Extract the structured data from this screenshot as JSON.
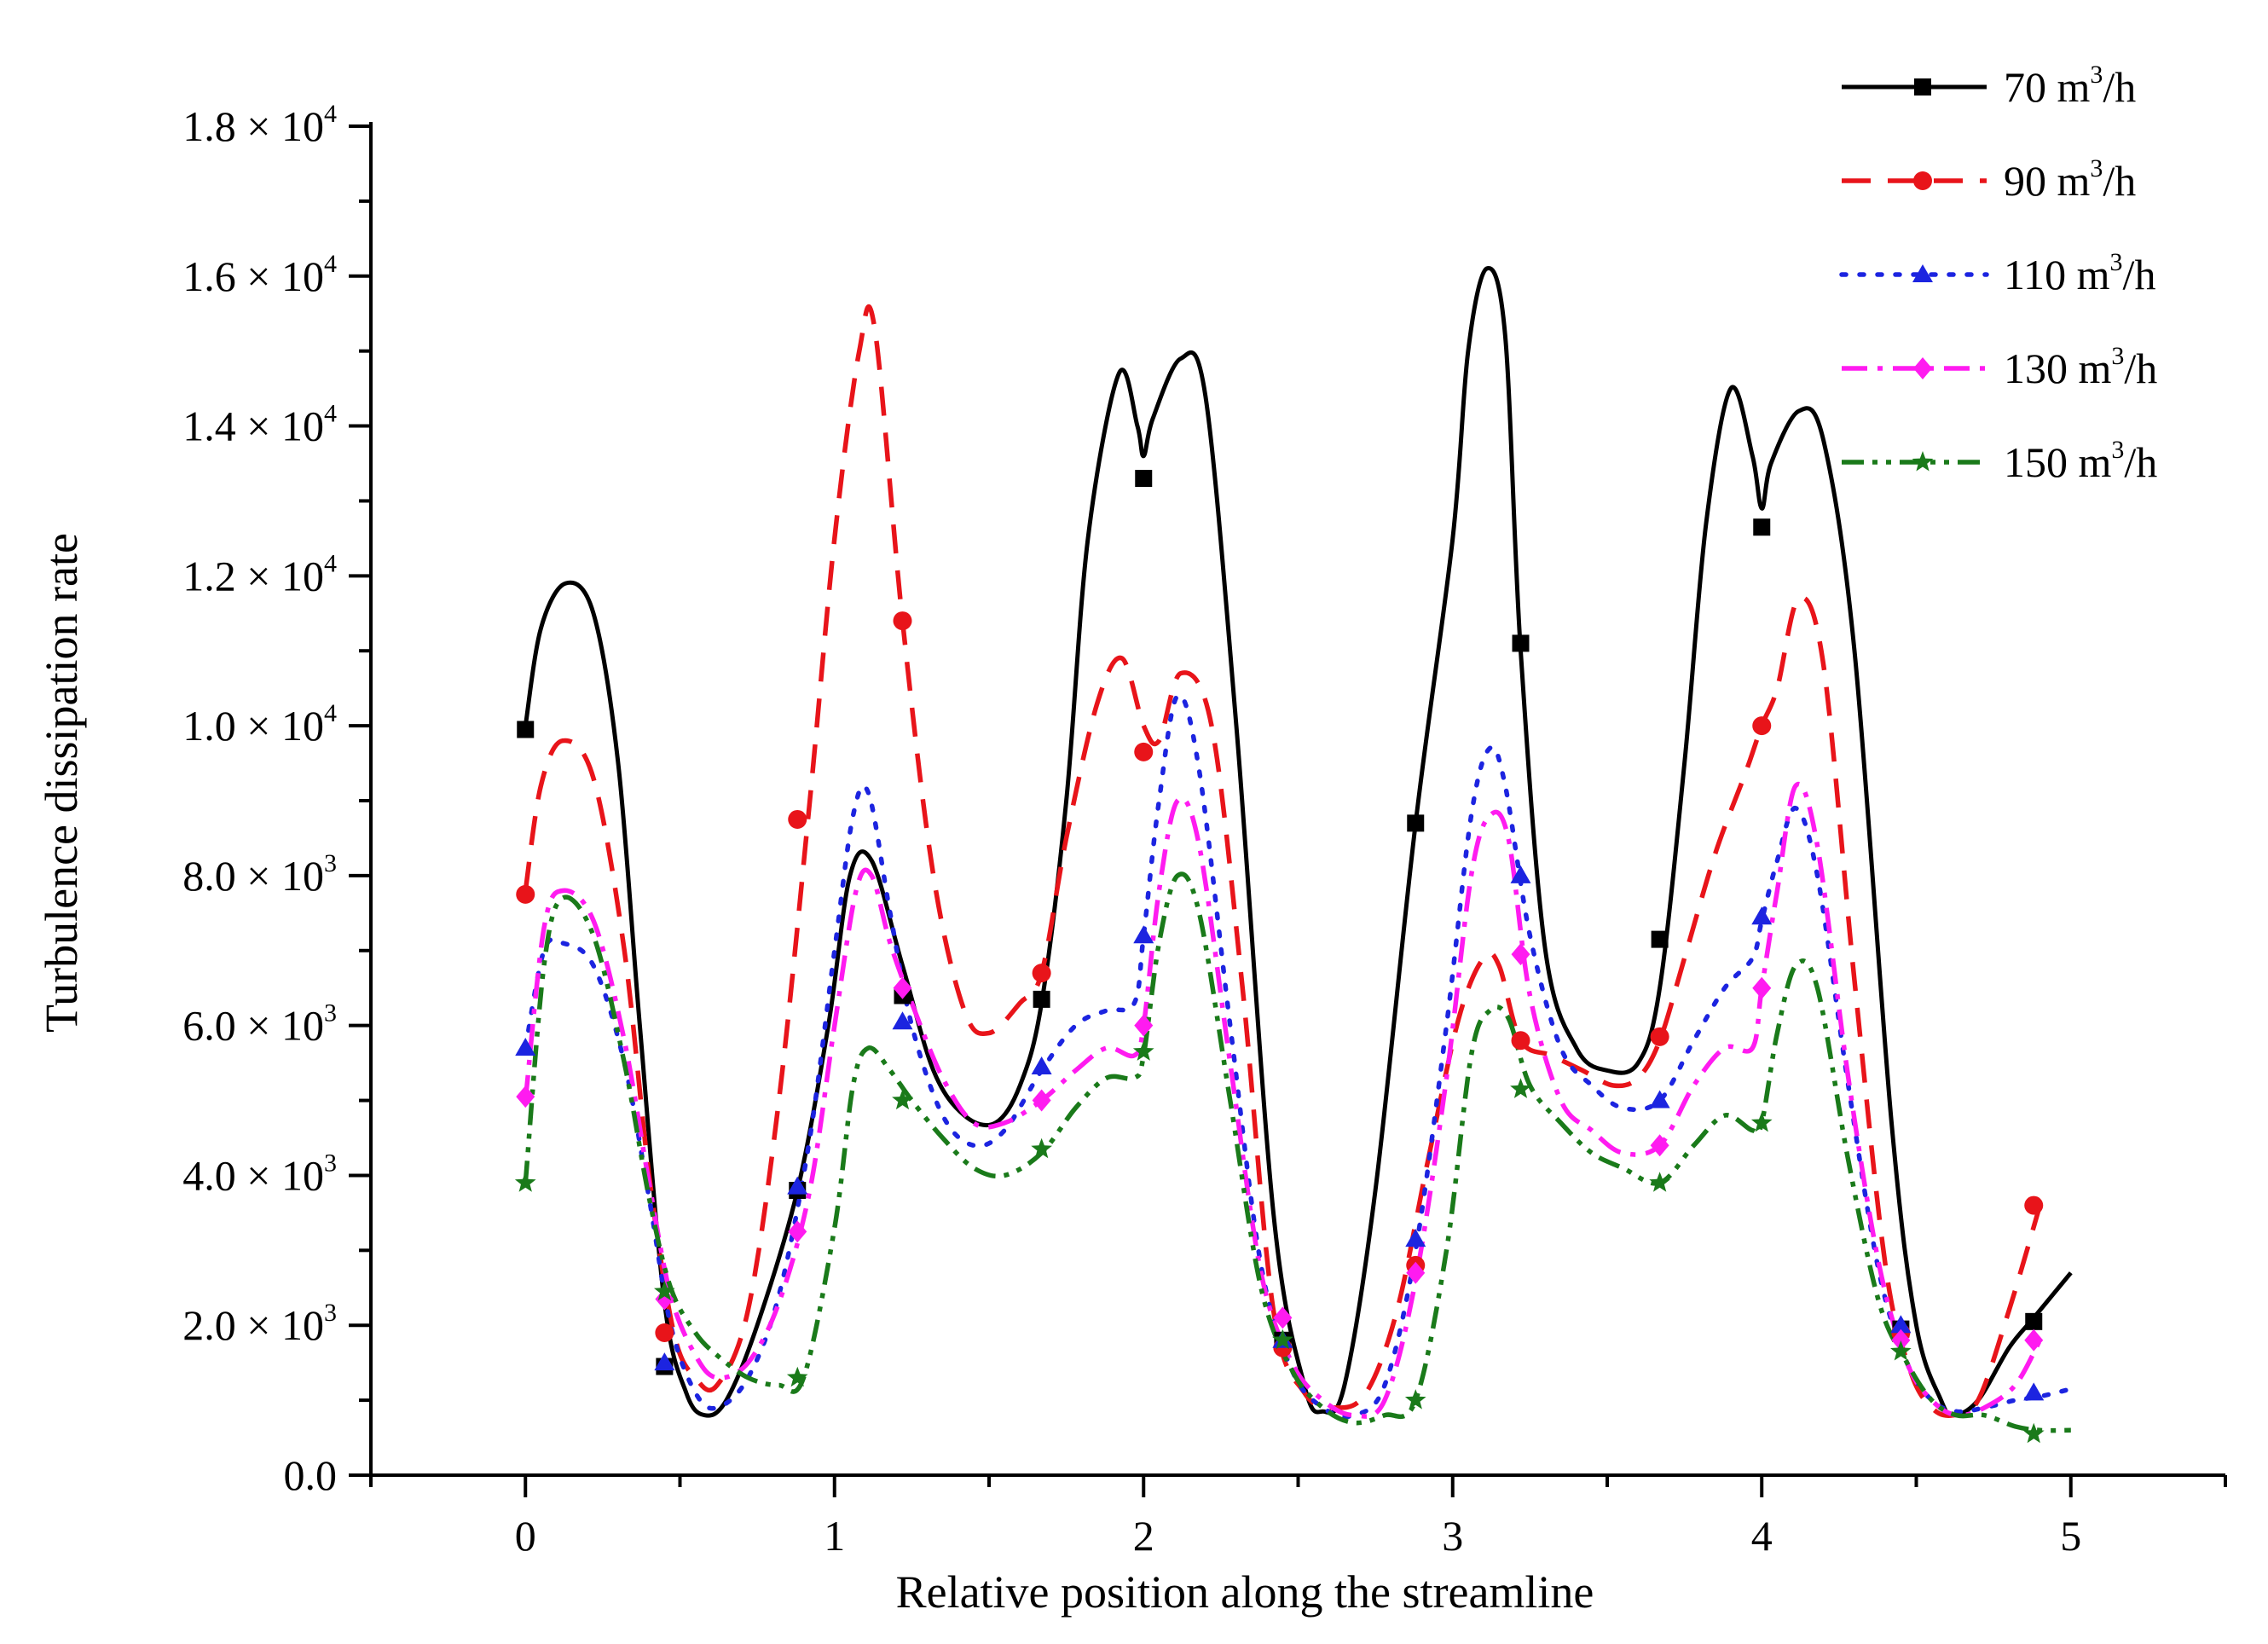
{
  "chart_data": {
    "type": "line",
    "title": "",
    "xlabel": "Relative position along the streamline",
    "ylabel": "Turbulence dissipation rate",
    "xlim": [
      -0.5,
      5.5
    ],
    "ylim": [
      0,
      18000
    ],
    "x_ticks": [
      0,
      1,
      2,
      3,
      4,
      5
    ],
    "x_tick_labels": [
      "0",
      "1",
      "2",
      "3",
      "4",
      "5"
    ],
    "y_ticks": [
      {
        "value": 0,
        "mantissa": "0.0",
        "exp": ""
      },
      {
        "value": 2000,
        "mantissa": "2.0",
        "exp": "3"
      },
      {
        "value": 4000,
        "mantissa": "4.0",
        "exp": "3"
      },
      {
        "value": 6000,
        "mantissa": "6.0",
        "exp": "3"
      },
      {
        "value": 8000,
        "mantissa": "8.0",
        "exp": "3"
      },
      {
        "value": 10000,
        "mantissa": "1.0",
        "exp": "4"
      },
      {
        "value": 12000,
        "mantissa": "1.2",
        "exp": "4"
      },
      {
        "value": 14000,
        "mantissa": "1.4",
        "exp": "4"
      },
      {
        "value": 16000,
        "mantissa": "1.6",
        "exp": "4"
      },
      {
        "value": 18000,
        "mantissa": "1.8",
        "exp": "4"
      }
    ],
    "tick_multiplier": "× 10",
    "legend_position": "top-right",
    "series": [
      {
        "name": "70",
        "unit": "m",
        "unit_exp": "3",
        "unit_suffix": "/h",
        "color": "#000000",
        "dash": "solid",
        "marker": "square",
        "curve_x": [
          0,
          0.05,
          0.13,
          0.22,
          0.3,
          0.37,
          0.45,
          0.52,
          0.58,
          0.65,
          0.75,
          0.88,
          0.98,
          1.05,
          1.12,
          1.22,
          1.32,
          1.42,
          1.52,
          1.6,
          1.67,
          1.75,
          1.82,
          1.92,
          1.98,
          2.0,
          2.03,
          2.12,
          2.2,
          2.3,
          2.42,
          2.52,
          2.58,
          2.65,
          2.75,
          2.88,
          3.0,
          3.05,
          3.11,
          3.17,
          3.22,
          3.3,
          3.4,
          3.5,
          3.6,
          3.67,
          3.75,
          3.82,
          3.9,
          3.97,
          4.0,
          4.03,
          4.12,
          4.2,
          4.3,
          4.42,
          4.5,
          4.58,
          4.62,
          4.7,
          4.8,
          4.88,
          5.0
        ],
        "curve_y": [
          10000,
          11300,
          11900,
          11500,
          9500,
          6000,
          2300,
          1100,
          800,
          1000,
          2000,
          3800,
          6000,
          8000,
          8200,
          6800,
          5400,
          4800,
          4700,
          5200,
          6300,
          9000,
          12500,
          14700,
          14000,
          13600,
          14100,
          14900,
          14400,
          10000,
          3500,
          1200,
          850,
          1200,
          3800,
          8700,
          12500,
          15000,
          16100,
          15200,
          11000,
          7000,
          5700,
          5400,
          5500,
          6500,
          9500,
          12700,
          14500,
          13600,
          12900,
          13500,
          14200,
          13800,
          11000,
          4700,
          2000,
          1000,
          800,
          1000,
          1700,
          2100,
          2700
        ],
        "marker_x": [
          0,
          0.45,
          0.88,
          1.22,
          1.67,
          2.0,
          2.45,
          2.88,
          3.22,
          3.67,
          4.0,
          4.45,
          4.88
        ],
        "marker_y": [
          9950,
          1450,
          3800,
          6400,
          6350,
          13300,
          1800,
          8700,
          11100,
          7150,
          12650,
          1950,
          2050
        ]
      },
      {
        "name": "90",
        "unit": "m",
        "unit_exp": "3",
        "unit_suffix": "/h",
        "color": "#e8141a",
        "dash": "dashed",
        "marker": "circle",
        "curve_x": [
          0,
          0.05,
          0.12,
          0.22,
          0.32,
          0.4,
          0.48,
          0.55,
          0.62,
          0.72,
          0.82,
          0.92,
          1.0,
          1.08,
          1.13,
          1.22,
          1.32,
          1.42,
          1.5,
          1.6,
          1.67,
          1.75,
          1.85,
          1.93,
          2.0,
          2.05,
          2.12,
          2.22,
          2.32,
          2.42,
          2.52,
          2.62,
          2.72,
          2.82,
          2.92,
          3.02,
          3.1,
          3.15,
          3.22,
          3.32,
          3.42,
          3.52,
          3.6,
          3.67,
          3.75,
          3.85,
          3.95,
          4.0,
          4.05,
          4.12,
          4.2,
          4.3,
          4.4,
          4.48,
          4.55,
          4.62,
          4.7,
          4.8,
          4.9
        ],
        "curve_y": [
          7800,
          9200,
          9800,
          9300,
          7000,
          4000,
          1900,
          1300,
          1200,
          2200,
          5000,
          9000,
          12500,
          15000,
          15300,
          11400,
          8000,
          6200,
          5900,
          6300,
          6700,
          8500,
          10300,
          10900,
          10000,
          9800,
          10700,
          10000,
          6500,
          2200,
          1100,
          900,
          1100,
          2200,
          4200,
          6100,
          6900,
          6800,
          5800,
          5600,
          5400,
          5200,
          5300,
          5800,
          6900,
          8300,
          9400,
          10000,
          10500,
          11700,
          10800,
          6600,
          2800,
          1400,
          900,
          800,
          1000,
          2200,
          3600
        ],
        "marker_x": [
          0,
          0.45,
          0.88,
          1.22,
          1.67,
          2.0,
          2.45,
          2.88,
          3.22,
          3.67,
          4.0,
          4.45,
          4.88
        ],
        "marker_y": [
          7750,
          1900,
          8750,
          11400,
          6700,
          9650,
          1700,
          2800,
          5800,
          5850,
          10000,
          1900,
          3600
        ]
      },
      {
        "name": "110",
        "unit": "m",
        "unit_exp": "3",
        "unit_suffix": "/h",
        "color": "#1c24e0",
        "dash": "dotted",
        "marker": "triangle",
        "curve_x": [
          0,
          0.06,
          0.12,
          0.22,
          0.32,
          0.4,
          0.47,
          0.55,
          0.62,
          0.72,
          0.82,
          0.92,
          1.0,
          1.06,
          1.11,
          1.18,
          1.25,
          1.35,
          1.45,
          1.55,
          1.67,
          1.78,
          1.88,
          1.97,
          2.0,
          2.05,
          2.11,
          2.18,
          2.28,
          2.38,
          2.48,
          2.58,
          2.68,
          2.78,
          2.88,
          2.98,
          3.06,
          3.12,
          3.17,
          3.25,
          3.35,
          3.45,
          3.55,
          3.67,
          3.78,
          3.88,
          3.97,
          4.0,
          4.05,
          4.11,
          4.18,
          4.28,
          4.38,
          4.47,
          4.55,
          4.63,
          4.72,
          4.82,
          4.9,
          5.0
        ],
        "curve_y": [
          5700,
          7000,
          7100,
          6800,
          5500,
          3700,
          2000,
          1100,
          900,
          1300,
          2400,
          4500,
          7000,
          8800,
          9100,
          7500,
          6000,
          4800,
          4400,
          4600,
          5400,
          6000,
          6200,
          6300,
          7200,
          9000,
          10400,
          9400,
          6000,
          2800,
          1400,
          900,
          800,
          1200,
          3000,
          6000,
          8800,
          9700,
          9200,
          7200,
          5700,
          5200,
          4900,
          5000,
          5800,
          6500,
          6900,
          7400,
          8200,
          8900,
          8000,
          5200,
          2700,
          1500,
          1000,
          850,
          900,
          1000,
          1050,
          1150
        ],
        "marker_x": [
          0,
          0.45,
          0.88,
          1.22,
          1.67,
          2.0,
          2.45,
          2.88,
          3.22,
          3.67,
          4.0,
          4.45,
          4.88
        ],
        "marker_y": [
          5700,
          1500,
          3850,
          6050,
          5450,
          7200,
          1800,
          3150,
          8000,
          5000,
          7450,
          2000,
          1100
        ]
      },
      {
        "name": "130",
        "unit": "m",
        "unit_exp": "3",
        "unit_suffix": "/h",
        "color": "#ff1bf0",
        "dash": "dashdot",
        "marker": "diamond",
        "curve_x": [
          0,
          0.06,
          0.12,
          0.22,
          0.32,
          0.4,
          0.47,
          0.55,
          0.62,
          0.72,
          0.82,
          0.92,
          1.0,
          1.07,
          1.12,
          1.18,
          1.25,
          1.35,
          1.45,
          1.55,
          1.67,
          1.78,
          1.88,
          1.97,
          2.0,
          2.05,
          2.11,
          2.18,
          2.28,
          2.38,
          2.48,
          2.58,
          2.68,
          2.78,
          2.88,
          2.98,
          3.06,
          3.12,
          3.18,
          3.25,
          3.35,
          3.45,
          3.55,
          3.67,
          3.78,
          3.88,
          3.97,
          4.0,
          4.05,
          4.11,
          4.18,
          4.28,
          4.38,
          4.47,
          4.55,
          4.63,
          4.72,
          4.82,
          4.9
        ],
        "curve_y": [
          5000,
          7300,
          7800,
          7400,
          5800,
          3900,
          2400,
          1600,
          1300,
          1500,
          2300,
          3800,
          6000,
          7800,
          8000,
          7100,
          6300,
          5300,
          4700,
          4700,
          5000,
          5400,
          5700,
          5600,
          6000,
          7800,
          9000,
          8400,
          5500,
          2700,
          1500,
          1000,
          800,
          1000,
          2600,
          5300,
          8000,
          8800,
          8500,
          6400,
          5000,
          4600,
          4300,
          4400,
          5200,
          5700,
          5700,
          6500,
          7800,
          9200,
          8400,
          5300,
          2800,
          1500,
          1000,
          800,
          900,
          1200,
          1800
        ],
        "marker_x": [
          0,
          0.45,
          0.88,
          1.22,
          1.67,
          2.0,
          2.45,
          2.88,
          3.22,
          3.67,
          4.0,
          4.45,
          4.88
        ],
        "marker_y": [
          5050,
          2350,
          3250,
          6500,
          5000,
          6000,
          2100,
          2700,
          6950,
          4400,
          6500,
          1800,
          1800
        ]
      },
      {
        "name": "150",
        "unit": "m",
        "unit_exp": "3",
        "unit_suffix": "/h",
        "color": "#1a7a1a",
        "dash": "dashdotdot",
        "marker": "star",
        "curve_x": [
          0,
          0.06,
          0.12,
          0.22,
          0.32,
          0.4,
          0.47,
          0.55,
          0.62,
          0.72,
          0.82,
          0.9,
          1.0,
          1.06,
          1.11,
          1.18,
          1.25,
          1.35,
          1.45,
          1.55,
          1.67,
          1.78,
          1.88,
          1.97,
          2.0,
          2.05,
          2.11,
          2.18,
          2.28,
          2.38,
          2.48,
          2.58,
          2.68,
          2.78,
          2.88,
          2.98,
          3.06,
          3.12,
          3.18,
          3.25,
          3.35,
          3.45,
          3.55,
          3.67,
          3.78,
          3.88,
          3.97,
          4.0,
          4.05,
          4.11,
          4.18,
          4.28,
          4.38,
          4.47,
          4.55,
          4.63,
          4.72,
          4.82,
          4.9,
          5.0
        ],
        "curve_y": [
          3900,
          6800,
          7700,
          7200,
          5500,
          3700,
          2500,
          1900,
          1600,
          1300,
          1200,
          1300,
          3300,
          5200,
          5700,
          5400,
          5000,
          4500,
          4100,
          4000,
          4300,
          4900,
          5300,
          5300,
          5600,
          7100,
          8000,
          7500,
          5000,
          2500,
          1400,
          900,
          700,
          800,
          1000,
          3000,
          5600,
          6200,
          6100,
          5200,
          4700,
          4300,
          4100,
          3900,
          4400,
          4800,
          4600,
          4700,
          5900,
          6800,
          6500,
          4200,
          2300,
          1500,
          1000,
          800,
          800,
          650,
          600,
          600
        ],
        "marker_x": [
          0,
          0.45,
          0.88,
          1.22,
          1.67,
          2.0,
          2.45,
          2.88,
          3.22,
          3.67,
          4.0,
          4.45,
          4.88
        ],
        "marker_y": [
          3900,
          2450,
          1300,
          5000,
          4350,
          5650,
          1800,
          1000,
          5150,
          3900,
          4700,
          1650,
          550
        ]
      }
    ]
  }
}
